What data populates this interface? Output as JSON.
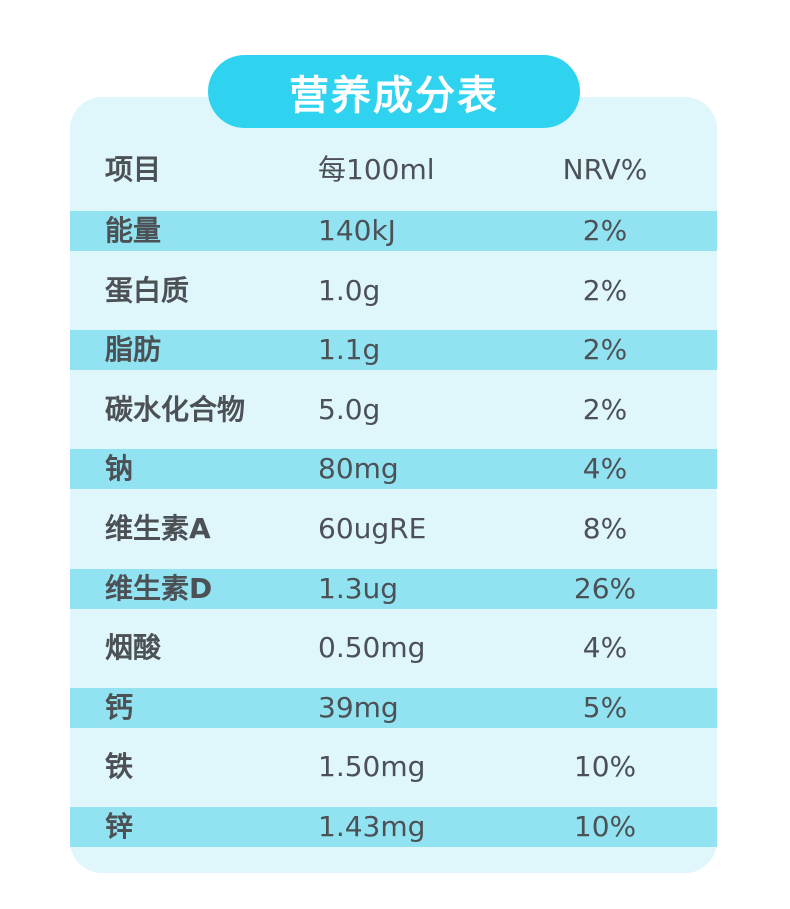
{
  "title": "营养成分表",
  "headers": {
    "item": "项目",
    "per": "每100ml",
    "nrv": "NRV%"
  },
  "rows": [
    {
      "item": "能量",
      "per": "140kJ",
      "nrv": "2%"
    },
    {
      "item": "蛋白质",
      "per": "1.0g",
      "nrv": "2%"
    },
    {
      "item": "脂肪",
      "per": "1.1g",
      "nrv": "2%"
    },
    {
      "item": "碳水化合物",
      "per": "5.0g",
      "nrv": "2%"
    },
    {
      "item": "钠",
      "per": "80mg",
      "nrv": "4%"
    },
    {
      "item": "维生素A",
      "per": "60ugRE",
      "nrv": "8%"
    },
    {
      "item": "维生素D",
      "per": "1.3ug",
      "nrv": "26%"
    },
    {
      "item": "烟酸",
      "per": "0.50mg",
      "nrv": "4%"
    },
    {
      "item": "钙",
      "per": "39mg",
      "nrv": "5%"
    },
    {
      "item": "铁",
      "per": "1.50mg",
      "nrv": "10%"
    },
    {
      "item": "锌",
      "per": "1.43mg",
      "nrv": "10%"
    }
  ],
  "colors": {
    "accent": "#2fd3ef",
    "band": "#92e3f1",
    "card": "#dff6fb",
    "text": "#4c5156"
  }
}
